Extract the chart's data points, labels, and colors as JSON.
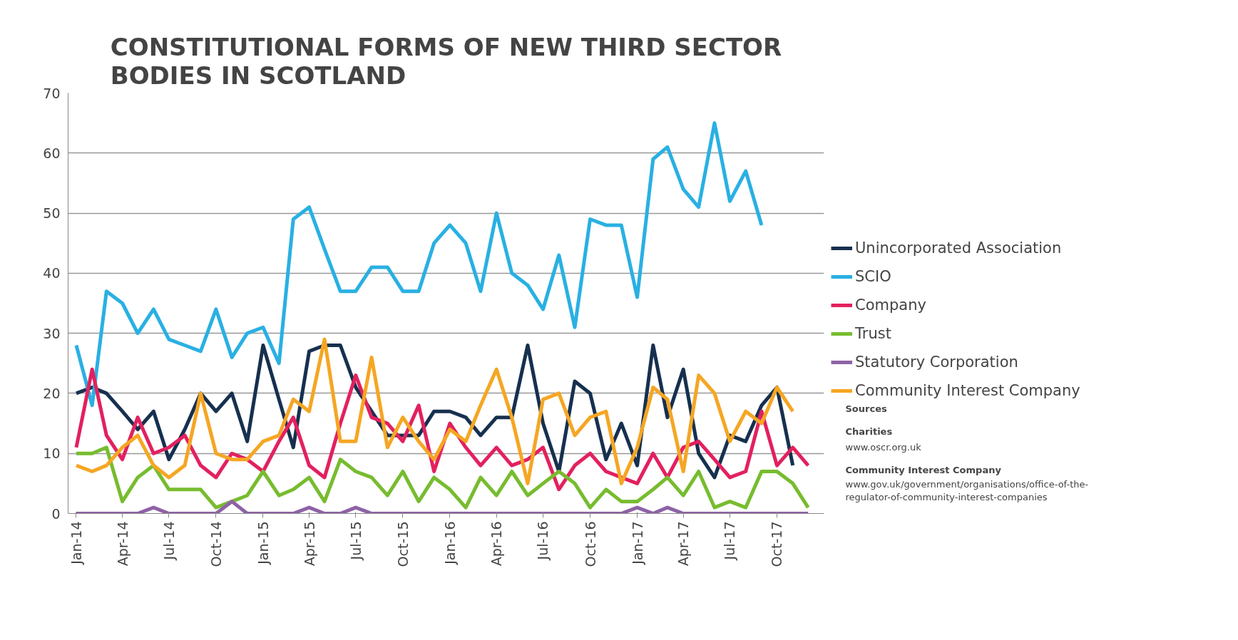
{
  "chart_data": {
    "type": "line",
    "title": "CONSTITUTIONAL FORMS OF NEW THIRD SECTOR\nBODIES IN SCOTLAND",
    "x": [
      "2014-01",
      "2014-02",
      "2014-03",
      "2014-04",
      "2014-05",
      "2014-06",
      "2014-07",
      "2014-08",
      "2014-09",
      "2014-10",
      "2014-11",
      "2014-12",
      "2015-01",
      "2015-02",
      "2015-03",
      "2015-04",
      "2015-05",
      "2015-06",
      "2015-07",
      "2015-08",
      "2015-09",
      "2015-10",
      "2015-11",
      "2015-12",
      "2016-01",
      "2016-02",
      "2016-03",
      "2016-04",
      "2016-05",
      "2016-06",
      "2016-07",
      "2016-08",
      "2016-09",
      "2016-10",
      "2016-11",
      "2016-12",
      "2017-01",
      "2017-02",
      "2017-03",
      "2017-04",
      "2017-05",
      "2017-06",
      "2017-07",
      "2017-08",
      "2017-09",
      "2017-10",
      "2017-11",
      "2017-12"
    ],
    "series": [
      {
        "name": "Unincorporated Association",
        "color": "#17304f",
        "values": [
          20,
          21,
          20,
          17,
          14,
          17,
          9,
          14,
          20,
          17,
          20,
          12,
          28,
          19,
          11,
          27,
          28,
          28,
          21,
          17,
          13,
          13,
          13,
          17,
          17,
          16,
          13,
          16,
          16,
          28,
          15,
          7,
          22,
          20,
          9,
          15,
          8,
          28,
          16,
          24,
          10,
          6,
          13,
          12,
          18,
          21,
          8,
          null
        ]
      },
      {
        "name": "SCIO",
        "color": "#29b0e3",
        "values": [
          28,
          18,
          37,
          35,
          30,
          34,
          29,
          28,
          27,
          34,
          26,
          30,
          31,
          25,
          49,
          51,
          44,
          37,
          37,
          41,
          41,
          37,
          37,
          45,
          48,
          45,
          37,
          50,
          40,
          38,
          34,
          43,
          31,
          49,
          48,
          48,
          36,
          59,
          61,
          54,
          51,
          65,
          52,
          57,
          48,
          null,
          null,
          null
        ]
      },
      {
        "name": "Company",
        "color": "#e2215f",
        "values": [
          11,
          24,
          13,
          9,
          16,
          10,
          11,
          13,
          8,
          6,
          10,
          9,
          7,
          12,
          16,
          8,
          6,
          15,
          23,
          16,
          15,
          12,
          18,
          7,
          15,
          11,
          8,
          11,
          8,
          9,
          11,
          4,
          8,
          10,
          7,
          6,
          5,
          10,
          6,
          11,
          12,
          9,
          6,
          7,
          17,
          8,
          11,
          8
        ]
      },
      {
        "name": "Trust",
        "color": "#77bc2f",
        "values": [
          10,
          10,
          11,
          2,
          6,
          8,
          4,
          4,
          4,
          1,
          2,
          3,
          7,
          3,
          4,
          6,
          2,
          9,
          7,
          6,
          3,
          7,
          2,
          6,
          4,
          1,
          6,
          3,
          7,
          3,
          5,
          7,
          5,
          1,
          4,
          2,
          2,
          4,
          6,
          3,
          7,
          1,
          2,
          1,
          7,
          7,
          5,
          1
        ]
      },
      {
        "name": "Statutory Corporation",
        "color": "#8e62a6",
        "values": [
          0,
          0,
          0,
          0,
          0,
          1,
          0,
          0,
          0,
          0,
          2,
          0,
          0,
          0,
          0,
          1,
          0,
          0,
          1,
          0,
          0,
          0,
          0,
          0,
          0,
          0,
          0,
          0,
          0,
          0,
          0,
          0,
          0,
          0,
          0,
          0,
          1,
          0,
          1,
          0,
          0,
          0,
          0,
          0,
          0,
          0,
          0,
          0
        ]
      },
      {
        "name": "Community Interest Company",
        "color": "#f5a623",
        "values": [
          8,
          7,
          8,
          11,
          13,
          8,
          6,
          8,
          20,
          10,
          9,
          9,
          12,
          13,
          19,
          17,
          29,
          12,
          12,
          26,
          11,
          16,
          12,
          9,
          14,
          12,
          18,
          24,
          16,
          5,
          19,
          20,
          13,
          16,
          17,
          5,
          11,
          21,
          19,
          7,
          23,
          20,
          12,
          17,
          15,
          21,
          17,
          null
        ]
      }
    ],
    "xlim": [
      "2013-12-16",
      "2018-01-01"
    ],
    "xticks": [
      {
        "value": "2014-01",
        "label": "Jan-14"
      },
      {
        "value": "2014-04",
        "label": "Apr-14"
      },
      {
        "value": "2014-07",
        "label": "Jul-14"
      },
      {
        "value": "2014-10",
        "label": "Oct-14"
      },
      {
        "value": "2015-01",
        "label": "Jan-15"
      },
      {
        "value": "2015-04",
        "label": "Apr-15"
      },
      {
        "value": "2015-07",
        "label": "Jul-15"
      },
      {
        "value": "2015-10",
        "label": "Oct-15"
      },
      {
        "value": "2016-01",
        "label": "Jan-16"
      },
      {
        "value": "2016-04",
        "label": "Apr-16"
      },
      {
        "value": "2016-07",
        "label": "Jul-16"
      },
      {
        "value": "2016-10",
        "label": "Oct-16"
      },
      {
        "value": "2017-01",
        "label": "Jan-17"
      },
      {
        "value": "2017-04",
        "label": "Apr-17"
      },
      {
        "value": "2017-07",
        "label": "Jul-17"
      },
      {
        "value": "2017-10",
        "label": "Oct-17"
      }
    ],
    "ylim": [
      0,
      70
    ],
    "yticks": [
      0,
      10,
      20,
      30,
      40,
      50,
      60,
      70
    ],
    "grid": "y",
    "legend": "right",
    "marker": "none",
    "line_style": "solid",
    "annotations": [
      "Sources",
      "Charities",
      "www.oscr.org.uk",
      "Community Interest Company",
      "www.gov.uk/government/organisations/office-of-the-\nregulator-of-community-interest-companies"
    ]
  }
}
